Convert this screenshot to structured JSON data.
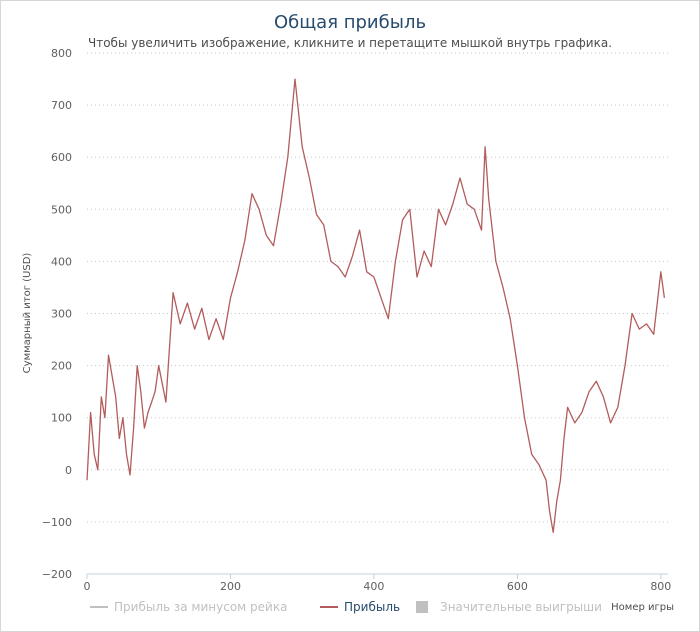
{
  "header": {
    "title": "Общая прибыль",
    "subtitle": "Чтобы увеличить изображение, кликните и перетащите мышкой внутрь графика."
  },
  "colors": {
    "series": "#b35c5c",
    "title": "#274b6d",
    "legend_active": "#274b6d",
    "legend_hidden": "#c0c0c0"
  },
  "chart_data": {
    "type": "line",
    "title": "Общая прибыль",
    "xlabel": "Номер игры",
    "ylabel": "Суммарный итог (USD)",
    "xlim": [
      0,
      810
    ],
    "ylim": [
      -200,
      800
    ],
    "xticks": [
      0,
      200,
      400,
      600,
      800
    ],
    "yticks": [
      -200,
      -100,
      0,
      100,
      200,
      300,
      400,
      500,
      600,
      700,
      800
    ],
    "grid": "horizontal-dotted",
    "legend_position": "bottom",
    "series": [
      {
        "name": "Прибыль",
        "visible": true,
        "x": [
          0,
          5,
          10,
          15,
          20,
          25,
          30,
          35,
          40,
          45,
          50,
          55,
          60,
          65,
          70,
          75,
          80,
          85,
          90,
          95,
          100,
          110,
          120,
          130,
          140,
          150,
          160,
          170,
          180,
          190,
          200,
          210,
          220,
          230,
          240,
          250,
          260,
          270,
          280,
          290,
          300,
          310,
          320,
          330,
          340,
          350,
          360,
          370,
          380,
          390,
          400,
          410,
          420,
          430,
          440,
          450,
          460,
          470,
          480,
          490,
          500,
          510,
          520,
          530,
          540,
          550,
          555,
          560,
          570,
          580,
          590,
          600,
          610,
          620,
          630,
          640,
          645,
          650,
          655,
          660,
          665,
          670,
          680,
          690,
          700,
          710,
          720,
          730,
          740,
          750,
          760,
          770,
          780,
          790,
          800,
          805
        ],
        "values": [
          -20,
          110,
          30,
          0,
          140,
          100,
          220,
          180,
          140,
          60,
          100,
          30,
          -10,
          80,
          200,
          150,
          80,
          110,
          130,
          150,
          200,
          130,
          340,
          280,
          320,
          270,
          310,
          250,
          290,
          250,
          330,
          380,
          440,
          530,
          500,
          450,
          430,
          510,
          600,
          750,
          620,
          560,
          490,
          470,
          400,
          390,
          370,
          410,
          460,
          380,
          370,
          330,
          290,
          400,
          480,
          500,
          370,
          420,
          390,
          500,
          470,
          510,
          560,
          510,
          500,
          460,
          620,
          520,
          400,
          350,
          290,
          200,
          100,
          30,
          10,
          -20,
          -80,
          -120,
          -60,
          -20,
          60,
          120,
          90,
          110,
          150,
          170,
          140,
          90,
          120,
          200,
          300,
          270,
          280,
          260,
          380,
          330
        ]
      },
      {
        "name": "Прибыль за минусом рейка",
        "visible": false
      },
      {
        "name": "Значительные выигрыши",
        "visible": false
      }
    ]
  }
}
